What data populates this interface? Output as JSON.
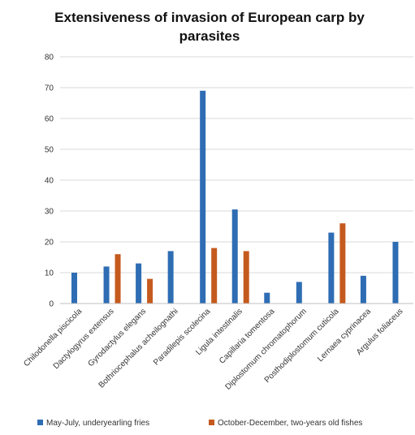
{
  "chart_data": {
    "type": "bar",
    "title_lines": [
      "Extensiveness of invasion of European carp by",
      "parasites"
    ],
    "categories": [
      "Chilodonella piscicola",
      "Dactylogyrus extensus",
      "Gyrodactylus elegans",
      "Bothriocephalus acheilognathi",
      "Paradilepis scolecina",
      "Ligula intestinalis",
      "Capillaria tomentosa",
      "Diplostomum chromatophorum",
      "Posthodiplostomum cuticola",
      "Lernaea cyprinacea",
      "Argulus foliaceus"
    ],
    "series": [
      {
        "name": "May-July, underyearling fries",
        "color": "#2e6db4",
        "values": [
          10,
          12,
          13,
          17,
          69,
          30.5,
          3.5,
          7,
          23,
          9,
          20
        ]
      },
      {
        "name": "October-December, two-years old fishes",
        "color": "#c55a1e",
        "values": [
          null,
          16,
          8,
          null,
          18,
          17,
          null,
          null,
          26,
          null,
          null
        ]
      }
    ],
    "ylim": [
      0,
      80
    ],
    "yticks": [
      0,
      10,
      20,
      30,
      40,
      50,
      60,
      70,
      80
    ],
    "grid": true,
    "legend_position": "bottom"
  }
}
